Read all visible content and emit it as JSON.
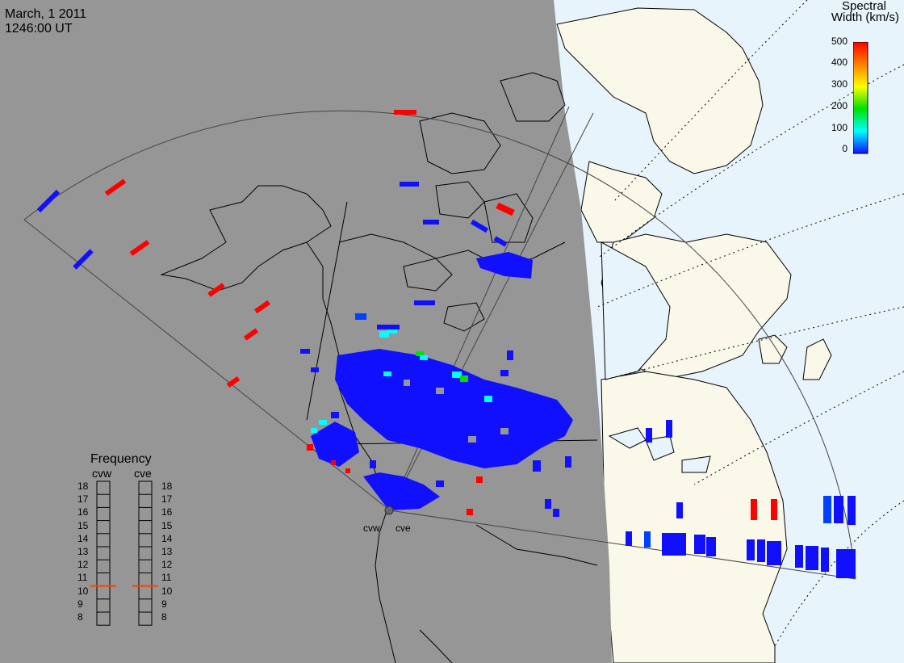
{
  "header": {
    "date": "March, 1 2011",
    "time": "1246:00 UT"
  },
  "colorbar": {
    "title_line1": "Spectral",
    "title_line2": "Width (km/s)",
    "ticks": [
      "500",
      "400",
      "300",
      "200",
      "100",
      "0"
    ],
    "colors": [
      "#ff0000",
      "#ff8000",
      "#ffff00",
      "#00e000",
      "#00ffff",
      "#0040ff",
      "#1010ff"
    ]
  },
  "frequency": {
    "title": "Frequency",
    "radars": [
      {
        "label": "cvw",
        "value": 10.5,
        "marker_color": "#ff4000"
      },
      {
        "label": "cve",
        "value": 10.5,
        "marker_color": "#ff4000"
      }
    ],
    "scale": [
      "18",
      "17",
      "16",
      "15",
      "14",
      "13",
      "12",
      "11",
      "10",
      "9",
      "8"
    ]
  },
  "sites": {
    "west": "cvw",
    "east": "cve"
  },
  "colors": {
    "night": "#969696",
    "day_land": "#faf8e8",
    "day_water": "#e8f4fc",
    "coast": "#000000",
    "fov": "#444444"
  }
}
